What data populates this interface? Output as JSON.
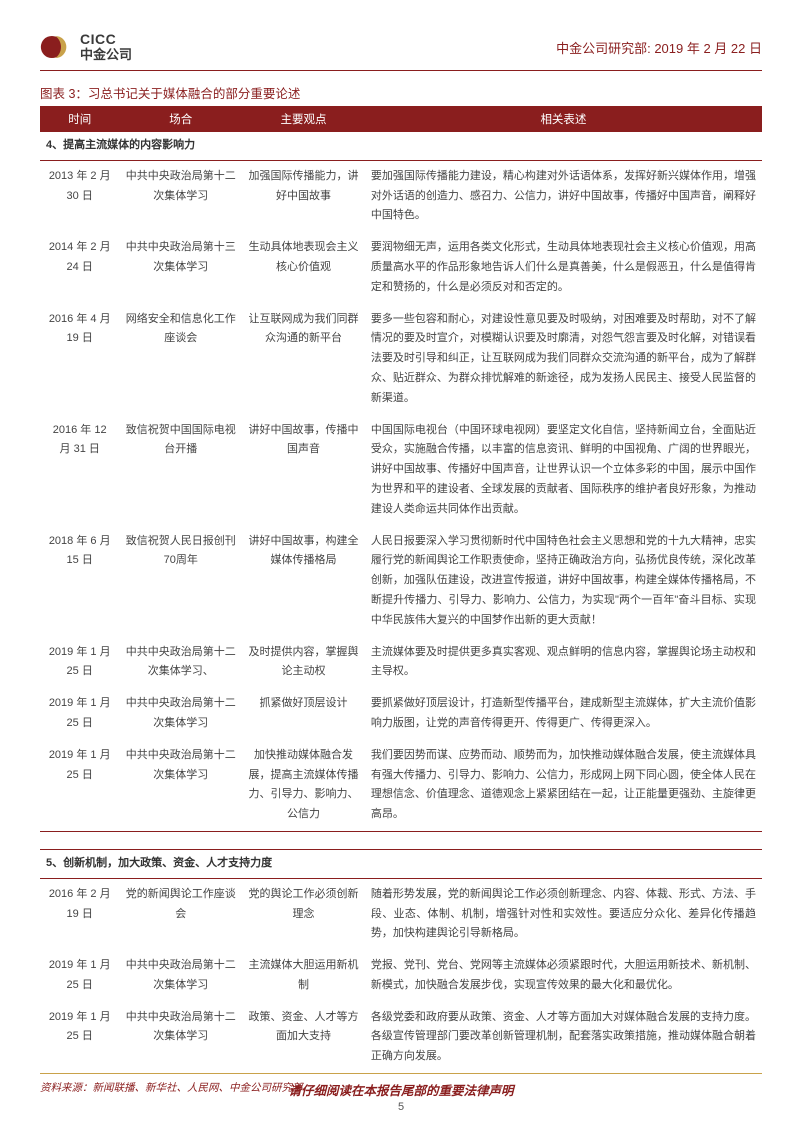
{
  "header": {
    "logo_en": "CICC",
    "logo_cn": "中金公司",
    "right": "中金公司研究部: 2019 年 2 月 22 日"
  },
  "chart_title": "图表 3：习总书记关于媒体融合的部分重要论述",
  "columns": {
    "time": "时间",
    "occasion": "场合",
    "viewpoint": "主要观点",
    "desc": "相关表述"
  },
  "section4": {
    "title": "4、提高主流媒体的内容影响力",
    "rows": [
      {
        "time": "2013 年 2 月 30 日",
        "occ": "中共中央政治局第十二次集体学习",
        "view": "加强国际传播能力，讲好中国故事",
        "desc": "要加强国际传播能力建设，精心构建对外话语体系，发挥好新兴媒体作用，增强对外话语的创造力、感召力、公信力，讲好中国故事，传播好中国声音，阐释好中国特色。"
      },
      {
        "time": "2014 年 2 月 24 日",
        "occ": "中共中央政治局第十三次集体学习",
        "view": "生动具体地表现会主义核心价值观",
        "desc": "要润物细无声，运用各类文化形式，生动具体地表现社会主义核心价值观，用高质量高水平的作品形象地告诉人们什么是真善美，什么是假恶丑，什么是值得肯定和赞扬的，什么是必须反对和否定的。"
      },
      {
        "time": "2016 年 4 月 19 日",
        "occ": "网络安全和信息化工作座谈会",
        "view": "让互联网成为我们同群众沟通的新平台",
        "desc": "要多一些包容和耐心，对建设性意见要及时吸纳，对困难要及时帮助，对不了解情况的要及时宣介，对模糊认识要及时廓清，对怨气怨言要及时化解，对错误看法要及时引导和纠正，让互联网成为我们同群众交流沟通的新平台，成为了解群众、贴近群众、为群众排忧解难的新途径，成为发扬人民民主、接受人民监督的新渠道。"
      },
      {
        "time": "2016 年 12 月 31 日",
        "occ": "致信祝贺中国国际电视台开播",
        "view": "讲好中国故事，传播中国声音",
        "desc": "中国国际电视台（中国环球电视网）要坚定文化自信，坚持新闻立台，全面贴近受众，实施融合传播，以丰富的信息资讯、鲜明的中国视角、广阔的世界眼光，讲好中国故事、传播好中国声音，让世界认识一个立体多彩的中国，展示中国作为世界和平的建设者、全球发展的贡献者、国际秩序的维护者良好形象，为推动建设人类命运共同体作出贡献。"
      },
      {
        "time": "2018 年 6 月 15 日",
        "occ": "致信祝贺人民日报创刊70周年",
        "view": "讲好中国故事，构建全媒体传播格局",
        "desc": "人民日报要深入学习贯彻新时代中国特色社会主义思想和党的十九大精神，忠实履行党的新闻舆论工作职责使命，坚持正确政治方向，弘扬优良传统，深化改革创新，加强队伍建设，改进宣传报道，讲好中国故事，构建全媒体传播格局，不断提升传播力、引导力、影响力、公信力，为实现\"两个一百年\"奋斗目标、实现中华民族伟大复兴的中国梦作出新的更大贡献！"
      },
      {
        "time": "2019 年 1 月 25 日",
        "occ": "中共中央政治局第十二次集体学习、",
        "view": "及时提供内容，掌握舆论主动权",
        "desc": "主流媒体要及时提供更多真实客观、观点鲜明的信息内容，掌握舆论场主动权和主导权。"
      },
      {
        "time": "2019 年 1 月 25 日",
        "occ": "中共中央政治局第十二次集体学习",
        "view": "抓紧做好顶层设计",
        "desc": "要抓紧做好顶层设计，打造新型传播平台，建成新型主流媒体，扩大主流价值影响力版图，让党的声音传得更开、传得更广、传得更深入。"
      },
      {
        "time": "2019 年 1 月 25 日",
        "occ": "中共中央政治局第十二次集体学习",
        "view": "加快推动媒体融合发展，提高主流媒体传播力、引导力、影响力、公信力",
        "desc": "我们要因势而谋、应势而动、顺势而为，加快推动媒体融合发展，使主流媒体具有强大传播力、引导力、影响力、公信力，形成网上网下同心圆，使全体人民在理想信念、价值理念、道德观念上紧紧团结在一起，让正能量更强劲、主旋律更高昂。"
      }
    ]
  },
  "section5": {
    "title": "5、创新机制，加大政策、资金、人才支持力度",
    "rows": [
      {
        "time": "2016 年 2 月 19 日",
        "occ": "党的新闻舆论工作座谈会",
        "view": "党的舆论工作必须创新理念",
        "desc": "随着形势发展，党的新闻舆论工作必须创新理念、内容、体裁、形式、方法、手段、业态、体制、机制，增强针对性和实效性。要适应分众化、差异化传播趋势，加快构建舆论引导新格局。"
      },
      {
        "time": "2019 年 1 月 25 日",
        "occ": "中共中央政治局第十二次集体学习",
        "view": "主流媒体大胆运用新机制",
        "desc": "党报、党刊、党台、党网等主流媒体必须紧跟时代，大胆运用新技术、新机制、新模式，加快融合发展步伐，实现宣传效果的最大化和最优化。"
      },
      {
        "time": "2019 年 1 月 25 日",
        "occ": "中共中央政治局第十二次集体学习",
        "view": "政策、资金、人才等方面加大支持",
        "desc": "各级党委和政府要从政策、资金、人才等方面加大对媒体融合发展的支持力度。各级宣传管理部门要改革创新管理机制，配套落实政策措施，推动媒体融合朝着正确方向发展。"
      }
    ]
  },
  "source": "资料来源：新闻联播、新华社、人民网、中金公司研究部",
  "footer": {
    "text": "请仔细阅读在本报告尾部的重要法律声明",
    "page": "5"
  },
  "colors": {
    "brand": "#8a1e1e",
    "gold": "#c9a24a"
  }
}
